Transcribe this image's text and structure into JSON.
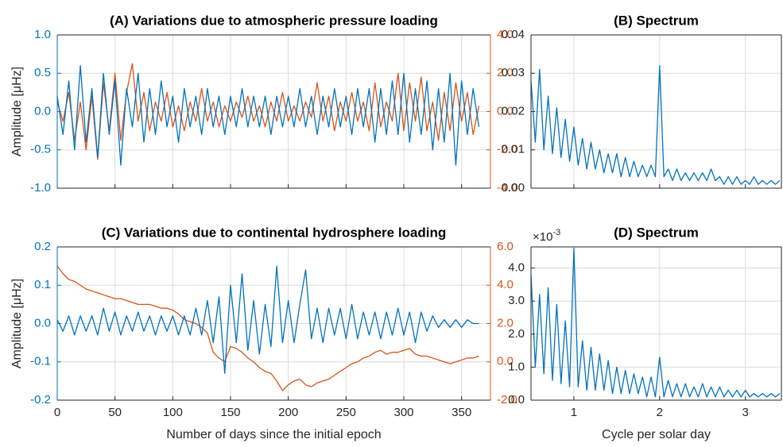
{
  "chart_data": [
    {
      "type": "line",
      "title": "(A) Variations due to  atmospheric pressure loading",
      "ylabel": "Amplitude [μHz]",
      "x": [
        0,
        5,
        10,
        15,
        20,
        25,
        30,
        35,
        40,
        45,
        50,
        55,
        60,
        65,
        70,
        75,
        80,
        85,
        90,
        95,
        100,
        105,
        110,
        115,
        120,
        125,
        130,
        135,
        140,
        145,
        150,
        155,
        160,
        165,
        170,
        175,
        180,
        185,
        190,
        195,
        200,
        205,
        210,
        215,
        220,
        225,
        230,
        235,
        240,
        245,
        250,
        255,
        260,
        265,
        270,
        275,
        280,
        285,
        290,
        295,
        300,
        305,
        310,
        315,
        320,
        325,
        330,
        335,
        340,
        345,
        350,
        355,
        360,
        365
      ],
      "series": [
        {
          "color": "#0072bd",
          "values": [
            0.2,
            -0.3,
            0.4,
            -0.5,
            0.6,
            -0.4,
            0.3,
            -0.6,
            0.5,
            -0.3,
            0.4,
            -0.7,
            0.3,
            -0.2,
            0.5,
            -0.4,
            0.3,
            -0.3,
            0.4,
            -0.2,
            0.2,
            -0.4,
            0.3,
            -0.2,
            0.2,
            -0.3,
            0.3,
            -0.2,
            0.2,
            -0.3,
            0.2,
            -0.2,
            0.3,
            -0.2,
            0.2,
            -0.2,
            0.2,
            -0.3,
            0.2,
            -0.2,
            0.2,
            -0.2,
            0.3,
            -0.2,
            0.2,
            -0.3,
            0.2,
            -0.2,
            0.3,
            -0.2,
            0.2,
            -0.3,
            0.3,
            -0.2,
            0.3,
            -0.4,
            0.3,
            -0.3,
            0.4,
            -0.3,
            0.5,
            -0.4,
            0.3,
            -0.3,
            0.4,
            -0.5,
            0.3,
            -0.4,
            0.5,
            -0.7,
            0.4,
            -0.3,
            0.3,
            -0.2
          ]
        },
        {
          "color": "#d95319",
          "axis": "y2",
          "values": [
            0.5,
            -0.5,
            1.0,
            -1.5,
            0.5,
            -2.0,
            0.8,
            -2.5,
            1.5,
            -1.0,
            2.0,
            -1.5,
            1.0,
            2.5,
            -0.5,
            1.0,
            -1.0,
            0.5,
            -0.5,
            1.0,
            -0.8,
            0.3,
            -1.0,
            0.5,
            -0.5,
            1.2,
            -0.5,
            0.5,
            -0.8,
            0.3,
            -0.5,
            0.5,
            -0.3,
            0.8,
            -0.5,
            0.3,
            -0.8,
            0.5,
            -0.5,
            1.0,
            -0.5,
            0.3,
            -0.5,
            0.5,
            -0.3,
            1.5,
            -0.5,
            0.8,
            -1.0,
            0.5,
            -0.5,
            1.0,
            -0.5,
            0.5,
            -1.0,
            1.5,
            -0.8,
            0.5,
            -0.5,
            2.0,
            -1.0,
            1.5,
            -0.5,
            1.8,
            -1.0,
            0.5,
            -1.5,
            1.0,
            -1.0,
            1.5,
            -0.5,
            1.0,
            -1.2,
            0.3
          ]
        }
      ],
      "xlim": [
        0,
        375
      ],
      "xticks": [
        0,
        50,
        100,
        150,
        200,
        250,
        300,
        350
      ],
      "xticklabels": false,
      "ylim": [
        -1,
        1
      ],
      "yticks": [
        {
          "value": 1,
          "label": "1.0"
        },
        0.5,
        {
          "value": 0,
          "label": "0.0"
        },
        -0.5,
        {
          "value": -1,
          "label": "-1.0"
        }
      ],
      "y2lim": [
        -4,
        4
      ],
      "y2ticks": [
        {
          "value": 4,
          "label": "4.0"
        },
        {
          "value": 2,
          "label": "2.0"
        },
        {
          "value": 0,
          "label": "0.0"
        },
        {
          "value": -2,
          "label": "-2.0"
        },
        {
          "value": -4,
          "label": "-4.0"
        }
      ],
      "ycolor": "#0072bd",
      "y2color": "#d95319",
      "grid": true
    },
    {
      "type": "line",
      "title": "(B) Spectrum",
      "x": [
        0.5,
        0.55,
        0.6,
        0.65,
        0.7,
        0.75,
        0.8,
        0.85,
        0.9,
        0.95,
        1.0,
        1.05,
        1.1,
        1.15,
        1.2,
        1.25,
        1.3,
        1.35,
        1.4,
        1.45,
        1.5,
        1.55,
        1.6,
        1.65,
        1.7,
        1.75,
        1.8,
        1.85,
        1.9,
        1.95,
        2.0,
        2.05,
        2.1,
        2.15,
        2.2,
        2.25,
        2.3,
        2.35,
        2.4,
        2.45,
        2.5,
        2.55,
        2.6,
        2.65,
        2.7,
        2.75,
        2.8,
        2.85,
        2.9,
        2.95,
        3.0,
        3.05,
        3.1,
        3.15,
        3.2,
        3.25,
        3.3,
        3.35,
        3.4
      ],
      "series": [
        {
          "color": "#0072bd",
          "values": [
            0.028,
            0.012,
            0.031,
            0.01,
            0.024,
            0.009,
            0.021,
            0.008,
            0.018,
            0.007,
            0.016,
            0.006,
            0.013,
            0.005,
            0.012,
            0.005,
            0.01,
            0.004,
            0.009,
            0.004,
            0.009,
            0.003,
            0.008,
            0.003,
            0.007,
            0.003,
            0.006,
            0.003,
            0.006,
            0.003,
            0.032,
            0.003,
            0.005,
            0.002,
            0.005,
            0.002,
            0.004,
            0.002,
            0.004,
            0.002,
            0.004,
            0.002,
            0.005,
            0.002,
            0.003,
            0.001,
            0.003,
            0.001,
            0.003,
            0.001,
            0.002,
            0.001,
            0.003,
            0.001,
            0.002,
            0.001,
            0.002,
            0.001,
            0.002
          ]
        }
      ],
      "xlim": [
        0.5,
        3.42
      ],
      "xticks": [
        1,
        2,
        3
      ],
      "xticklabels": false,
      "ylim": [
        0,
        0.04
      ],
      "yticks": [
        0.04,
        0.03,
        0.02,
        0.01,
        {
          "value": 0,
          "label": "0.00"
        }
      ],
      "grid": true
    },
    {
      "type": "line",
      "title": "(C) Variations due to  continental hydrosphere loading",
      "ylabel": "Amplitude [μHz]",
      "xlabel": "Number of days since the initial epoch",
      "x": [
        0,
        5,
        10,
        15,
        20,
        25,
        30,
        35,
        40,
        45,
        50,
        55,
        60,
        65,
        70,
        75,
        80,
        85,
        90,
        95,
        100,
        105,
        110,
        115,
        120,
        125,
        130,
        135,
        140,
        145,
        150,
        155,
        160,
        165,
        170,
        175,
        180,
        185,
        190,
        195,
        200,
        205,
        210,
        215,
        220,
        225,
        230,
        235,
        240,
        245,
        250,
        255,
        260,
        265,
        270,
        275,
        280,
        285,
        290,
        295,
        300,
        305,
        310,
        315,
        320,
        325,
        330,
        335,
        340,
        345,
        350,
        355,
        360,
        365
      ],
      "series": [
        {
          "color": "#0072bd",
          "values": [
            0.01,
            -0.02,
            0.02,
            -0.03,
            0.02,
            -0.02,
            0.02,
            -0.03,
            0.04,
            -0.02,
            0.03,
            -0.03,
            0.02,
            -0.02,
            0.03,
            -0.02,
            0.02,
            -0.03,
            0.02,
            -0.02,
            0.02,
            -0.03,
            0.02,
            -0.03,
            0.04,
            -0.03,
            0.06,
            -0.05,
            0.07,
            -0.13,
            0.1,
            -0.05,
            0.13,
            -0.07,
            0.06,
            -0.08,
            0.05,
            -0.06,
            0.15,
            -0.05,
            0.06,
            -0.05,
            0.05,
            0.14,
            -0.04,
            0.04,
            -0.05,
            0.04,
            -0.03,
            0.04,
            -0.04,
            0.05,
            -0.04,
            0.03,
            -0.03,
            0.03,
            -0.04,
            0.03,
            -0.03,
            0.04,
            -0.03,
            0.03,
            -0.05,
            0.03,
            -0.02,
            0.02,
            -0.01,
            0.01,
            -0.01,
            0.01,
            -0.01,
            0.01,
            0,
            0
          ]
        },
        {
          "color": "#d95319",
          "axis": "y2",
          "values": [
            5.0,
            4.6,
            4.3,
            4.2,
            4.0,
            3.8,
            3.7,
            3.6,
            3.5,
            3.4,
            3.3,
            3.3,
            3.2,
            3.1,
            3.0,
            3.0,
            3.0,
            2.9,
            2.8,
            2.8,
            2.7,
            2.5,
            2.2,
            2.1,
            2.0,
            1.8,
            1.5,
            0.5,
            0.2,
            0.0,
            0.8,
            0.7,
            0.5,
            0.2,
            0.0,
            -0.3,
            -0.5,
            -0.6,
            -1.0,
            -1.5,
            -1.2,
            -1.0,
            -0.9,
            -1.2,
            -1.3,
            -1.1,
            -1.0,
            -0.9,
            -0.7,
            -0.5,
            -0.3,
            -0.1,
            0.0,
            0.2,
            0.3,
            0.5,
            0.6,
            0.4,
            0.5,
            0.5,
            0.6,
            0.7,
            0.4,
            0.3,
            0.3,
            0.2,
            0.1,
            0.0,
            -0.1,
            0.0,
            0.1,
            0.2,
            0.2,
            0.3
          ]
        }
      ],
      "xlim": [
        0,
        375
      ],
      "xticks": [
        0,
        50,
        100,
        150,
        200,
        250,
        300,
        350
      ],
      "ylim": [
        -0.2,
        0.2
      ],
      "yticks": [
        0.2,
        0.1,
        {
          "value": 0,
          "label": "0.0"
        },
        -0.1,
        -0.2
      ],
      "y2lim": [
        -2,
        6
      ],
      "y2ticks": [
        {
          "value": 6,
          "label": "6.0"
        },
        {
          "value": 4,
          "label": "4.0"
        },
        {
          "value": 2,
          "label": "2.0"
        },
        {
          "value": 0,
          "label": "0.0"
        },
        {
          "value": -2,
          "label": "-2.0"
        }
      ],
      "ycolor": "#0072bd",
      "y2color": "#d95319",
      "grid": true
    },
    {
      "type": "line",
      "title": "(D) Spectrum",
      "xlabel": "Cycle per solar day",
      "y_exponent": {
        "base": "×10",
        "power": "-3"
      },
      "x": [
        0.5,
        0.55,
        0.6,
        0.65,
        0.7,
        0.75,
        0.8,
        0.85,
        0.9,
        0.95,
        1.0,
        1.05,
        1.1,
        1.15,
        1.2,
        1.25,
        1.3,
        1.35,
        1.4,
        1.45,
        1.5,
        1.55,
        1.6,
        1.65,
        1.7,
        1.75,
        1.8,
        1.85,
        1.9,
        1.95,
        2.0,
        2.05,
        2.1,
        2.15,
        2.2,
        2.25,
        2.3,
        2.35,
        2.4,
        2.45,
        2.5,
        2.55,
        2.6,
        2.65,
        2.7,
        2.75,
        2.8,
        2.85,
        2.9,
        2.95,
        3.0,
        3.05,
        3.1,
        3.15,
        3.2,
        3.25,
        3.3,
        3.35,
        3.4
      ],
      "series": [
        {
          "color": "#0072bd",
          "values": [
            3.8,
            1.0,
            3.2,
            0.8,
            3.4,
            0.6,
            2.9,
            0.5,
            2.4,
            0.4,
            4.6,
            0.4,
            1.8,
            0.3,
            1.6,
            0.3,
            1.4,
            0.3,
            1.2,
            0.2,
            1.0,
            0.2,
            0.9,
            0.2,
            0.8,
            0.2,
            0.7,
            0.1,
            0.7,
            0.1,
            1.3,
            0.1,
            0.6,
            0.1,
            0.5,
            0.1,
            0.5,
            0.1,
            0.4,
            0.1,
            0.5,
            0.1,
            0.4,
            0.1,
            0.4,
            0.1,
            0.3,
            0.1,
            0.3,
            0.1,
            0.3,
            0.1,
            0.2,
            0.1,
            0.2,
            0.1,
            0.2,
            0.1,
            0.2
          ]
        }
      ],
      "xlim": [
        0.5,
        3.42
      ],
      "xticks": [
        1,
        2,
        3
      ],
      "ylim": [
        0,
        4.64
      ],
      "yticks": [
        {
          "value": 0,
          "label": "0.0"
        },
        {
          "value": 1,
          "label": "1.0"
        },
        {
          "value": 2,
          "label": "2.0"
        },
        {
          "value": 3,
          "label": "3.0"
        },
        {
          "value": 4,
          "label": "4.0"
        }
      ],
      "grid": true
    }
  ]
}
